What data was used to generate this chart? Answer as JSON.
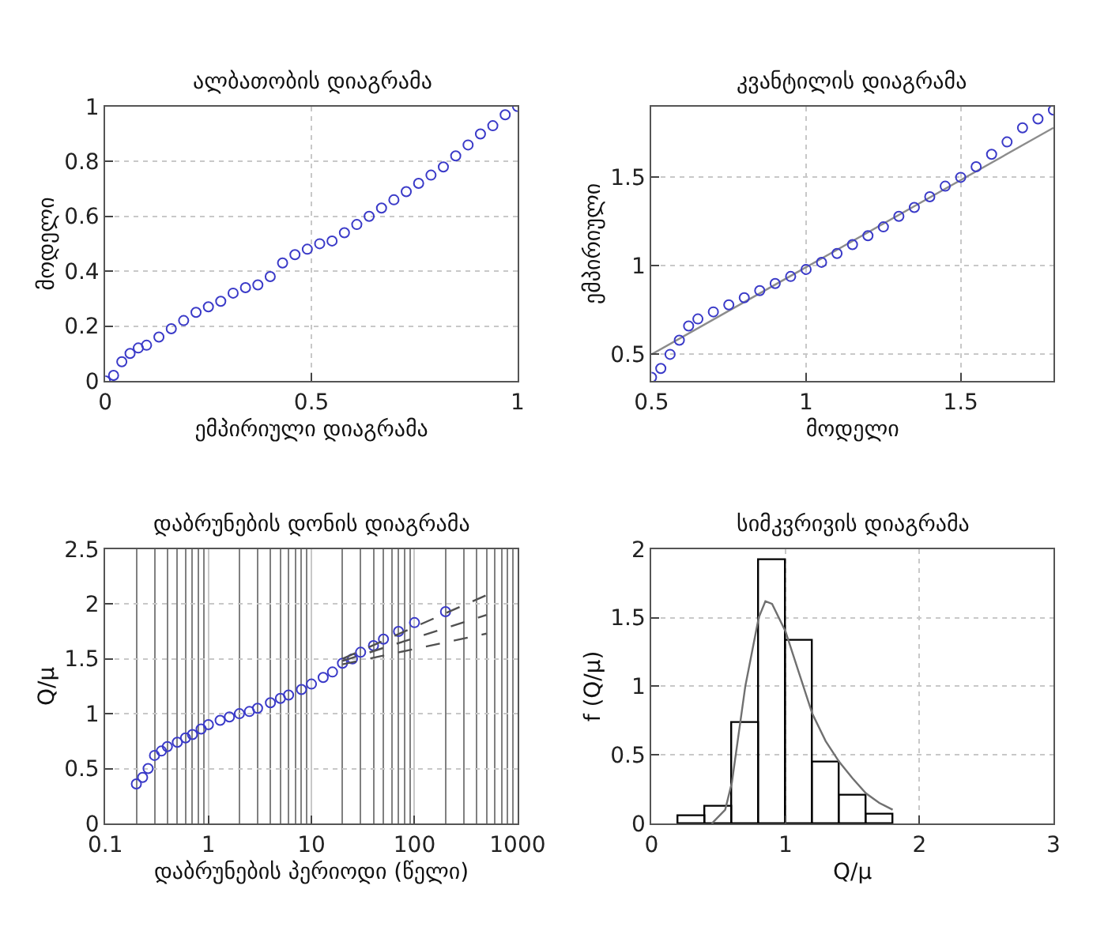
{
  "chart_data": [
    {
      "type": "scatter",
      "title": "ალბათობის დიაგრამა",
      "xlabel": "ემპირიული დიაგრამა",
      "ylabel": "მოდელი",
      "xlim": [
        0,
        1
      ],
      "ylim": [
        0,
        1
      ],
      "xticks": [
        0,
        0.5,
        1
      ],
      "yticks": [
        0,
        0.2,
        0.4,
        0.6,
        0.8,
        1
      ],
      "grid": true,
      "series": [
        {
          "marker": "circle",
          "color": "#3a3ac8",
          "x": [
            0,
            0.02,
            0.04,
            0.06,
            0.08,
            0.1,
            0.13,
            0.16,
            0.19,
            0.22,
            0.25,
            0.28,
            0.31,
            0.34,
            0.37,
            0.4,
            0.43,
            0.46,
            0.49,
            0.52,
            0.55,
            0.58,
            0.61,
            0.64,
            0.67,
            0.7,
            0.73,
            0.76,
            0.79,
            0.82,
            0.85,
            0.88,
            0.91,
            0.94,
            0.97,
            1
          ],
          "values": [
            0,
            0.02,
            0.07,
            0.1,
            0.12,
            0.13,
            0.16,
            0.19,
            0.22,
            0.25,
            0.27,
            0.29,
            0.32,
            0.34,
            0.35,
            0.38,
            0.43,
            0.46,
            0.48,
            0.5,
            0.51,
            0.54,
            0.57,
            0.6,
            0.63,
            0.66,
            0.69,
            0.72,
            0.75,
            0.78,
            0.82,
            0.86,
            0.9,
            0.93,
            0.97,
            1
          ]
        }
      ]
    },
    {
      "type": "scatter",
      "title": "კვანტილის დიაგრამა",
      "xlabel": "მოდელი",
      "ylabel": "ემპირიული",
      "xlim": [
        0.5,
        1.8
      ],
      "ylim": [
        0.35,
        1.9
      ],
      "xticks": [
        0.5,
        1,
        1.5
      ],
      "yticks": [
        0.5,
        1,
        1.5
      ],
      "grid": true,
      "series": [
        {
          "type": "line",
          "marker": "none",
          "color": "#8c8c8c",
          "x": [
            0.5,
            1.8
          ],
          "values": [
            0.5,
            1.78
          ]
        },
        {
          "marker": "circle",
          "color": "#3a3ac8",
          "x": [
            0.5,
            0.53,
            0.56,
            0.59,
            0.62,
            0.65,
            0.7,
            0.75,
            0.8,
            0.85,
            0.9,
            0.95,
            1,
            1.05,
            1.1,
            1.15,
            1.2,
            1.25,
            1.3,
            1.35,
            1.4,
            1.45,
            1.5,
            1.55,
            1.6,
            1.65,
            1.7,
            1.75,
            1.8
          ],
          "values": [
            0.37,
            0.42,
            0.5,
            0.58,
            0.66,
            0.7,
            0.74,
            0.78,
            0.82,
            0.86,
            0.9,
            0.94,
            0.98,
            1.02,
            1.07,
            1.12,
            1.17,
            1.22,
            1.28,
            1.33,
            1.39,
            1.45,
            1.5,
            1.56,
            1.63,
            1.7,
            1.78,
            1.83,
            1.88
          ]
        }
      ]
    },
    {
      "type": "scatter",
      "title": "დაბრუნების დონის დიაგრამა",
      "xlabel": "დაბრუნების პერიოდი (წელი)",
      "ylabel": "Q/μ",
      "log": "x",
      "xlim": [
        0.1,
        1000
      ],
      "ylim": [
        0,
        2.5
      ],
      "xticks": [
        0.1,
        1,
        10,
        100,
        1000
      ],
      "yticks": [
        0,
        0.5,
        1,
        1.5,
        2,
        2.5
      ],
      "grid": true,
      "series": [
        {
          "marker": "circle",
          "color": "#3a3ac8",
          "x": [
            0.2,
            0.23,
            0.26,
            0.3,
            0.35,
            0.4,
            0.5,
            0.6,
            0.7,
            0.85,
            1,
            1.3,
            1.6,
            2,
            2.5,
            3,
            4,
            5,
            6,
            8,
            10,
            13,
            16,
            20,
            25,
            30,
            40,
            50,
            70,
            100,
            200
          ],
          "values": [
            0.36,
            0.42,
            0.5,
            0.62,
            0.66,
            0.7,
            0.74,
            0.78,
            0.81,
            0.86,
            0.9,
            0.94,
            0.97,
            1.0,
            1.02,
            1.05,
            1.1,
            1.14,
            1.17,
            1.22,
            1.27,
            1.33,
            1.38,
            1.46,
            1.5,
            1.56,
            1.62,
            1.68,
            1.75,
            1.83,
            1.93
          ]
        },
        {
          "type": "line",
          "line_style": "dashed",
          "color": "#505050",
          "x": [
            20,
            500
          ],
          "values": [
            1.5,
            2.08
          ]
        },
        {
          "type": "line",
          "line_style": "dashed",
          "color": "#505050",
          "x": [
            20,
            500
          ],
          "values": [
            1.48,
            1.9
          ]
        },
        {
          "type": "line",
          "line_style": "dashed",
          "color": "#505050",
          "x": [
            20,
            500
          ],
          "values": [
            1.45,
            1.73
          ]
        }
      ]
    },
    {
      "type": "histogram",
      "title": "სიმკვრივის დიაგრამა",
      "xlabel": "Q/μ",
      "ylabel": "f (Q/μ)",
      "xlim": [
        0,
        3
      ],
      "ylim": [
        0,
        2
      ],
      "xticks": [
        0,
        1,
        2,
        3
      ],
      "yticks": [
        0,
        0.5,
        1,
        1.5,
        2
      ],
      "grid": true,
      "bins": [
        0.2,
        0.4,
        0.6,
        0.8,
        1.0,
        1.2,
        1.4,
        1.6,
        1.8
      ],
      "values": [
        0.05,
        0.12,
        0.73,
        1.92,
        1.33,
        0.45,
        0.2,
        0.07
      ],
      "color": "#000000",
      "series": [
        {
          "type": "line",
          "color": "#707070",
          "x": [
            0.45,
            0.55,
            0.6,
            0.7,
            0.8,
            0.85,
            0.9,
            1.0,
            1.1,
            1.2,
            1.3,
            1.4,
            1.5,
            1.6,
            1.7,
            1.8
          ],
          "values": [
            0,
            0.1,
            0.3,
            1.0,
            1.5,
            1.62,
            1.6,
            1.4,
            1.1,
            0.8,
            0.6,
            0.45,
            0.33,
            0.22,
            0.15,
            0.1
          ]
        }
      ]
    }
  ]
}
